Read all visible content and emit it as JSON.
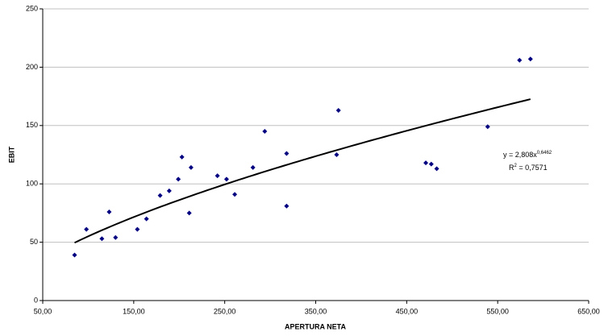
{
  "chart_data": {
    "type": "scatter",
    "x_label": "APERTURA NETA",
    "y_label": "EBIT",
    "x": [
      85,
      98,
      115,
      123,
      130,
      154,
      164,
      179,
      189,
      199,
      203,
      213,
      211,
      242,
      252,
      261,
      281,
      294,
      318,
      318,
      373,
      375,
      471,
      477,
      483,
      539,
      574,
      586
    ],
    "series": [
      {
        "name": "EBIT",
        "color": "#000080",
        "values": [
          39,
          61,
          53,
          76,
          54,
          61,
          70,
          90,
          94,
          104,
          123,
          114,
          75,
          107,
          104,
          91,
          114,
          145,
          126,
          81,
          125,
          163,
          118,
          117,
          113,
          149,
          206,
          207
        ]
      }
    ],
    "trendline": {
      "a": 2.808,
      "b": 0.6462,
      "color": "#000000"
    },
    "trendline_label": {
      "eq": "y = 2,808x",
      "exp": "0,6462",
      "r": "R",
      "r_exp": "2",
      "r_val": " = 0,7571"
    },
    "xlim": [
      50,
      650
    ],
    "xticks": [
      {
        "value": 50,
        "label": "50,00"
      },
      {
        "value": 150,
        "label": "150,00"
      },
      {
        "value": 250,
        "label": "250,00"
      },
      {
        "value": 350,
        "label": "350,00"
      },
      {
        "value": 450,
        "label": "450,00"
      },
      {
        "value": 550,
        "label": "550,00"
      },
      {
        "value": 650,
        "label": "650,00"
      }
    ],
    "ylim": [
      0,
      250
    ],
    "yticks": [
      0,
      50,
      100,
      150,
      200,
      250
    ],
    "grid": true
  }
}
